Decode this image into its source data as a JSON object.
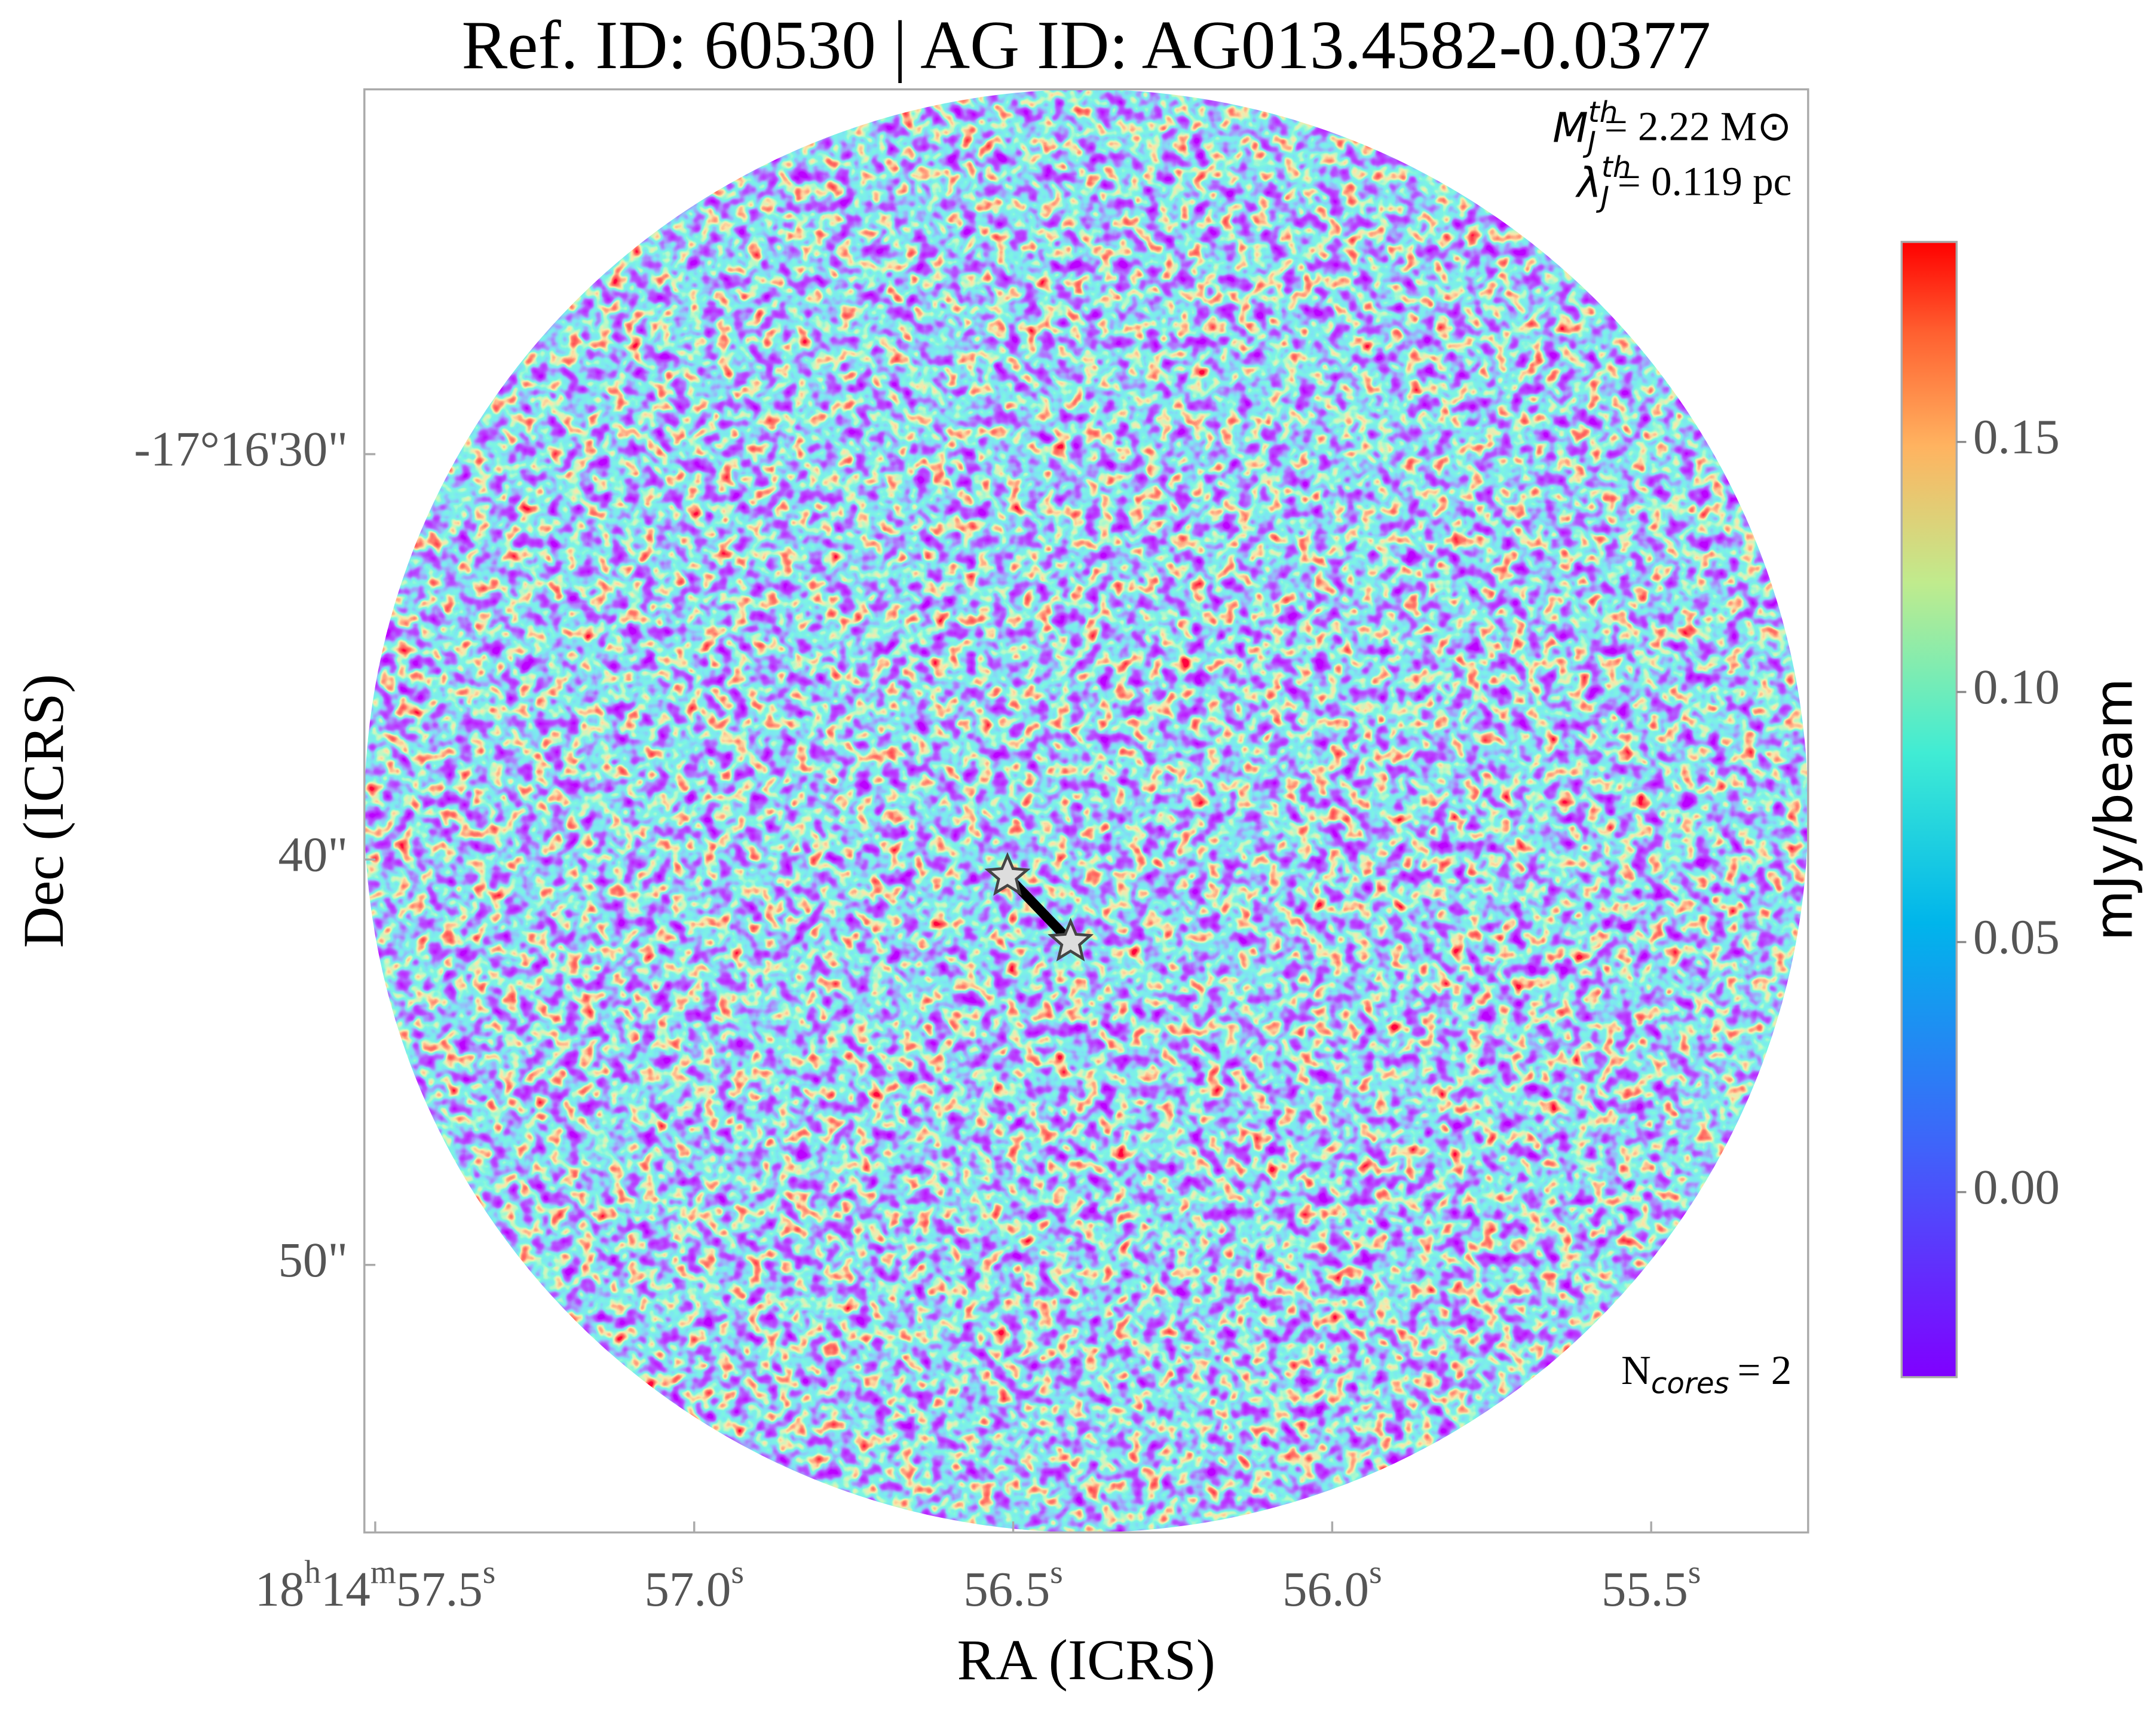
{
  "chart_data": {
    "type": "image",
    "title": "Ref. ID: 60530 | AG ID: AG013.4582-0.0377",
    "x_label": "RA (ICRS)",
    "y_label": "Dec (ICRS)",
    "xlim": [
      57.517,
      55.254
    ],
    "xticks": [
      {
        "value": 57.5,
        "label": "18h14m57.5s"
      },
      {
        "value": 57.0,
        "label": "57.0s"
      },
      {
        "value": 56.5,
        "label": "56.5s"
      },
      {
        "value": 56.0,
        "label": "56.0s"
      },
      {
        "value": 55.5,
        "label": "55.5s"
      }
    ],
    "ylim": [
      56.6,
      21.0
    ],
    "yticks": [
      {
        "value": 30,
        "label": "-17°16'30\""
      },
      {
        "value": 40,
        "label": "40\""
      },
      {
        "value": 50,
        "label": "50\""
      }
    ],
    "cores": {
      "x": [
        56.509,
        56.41
      ],
      "y": [
        40.41,
        42.03
      ]
    },
    "annotations": [
      {
        "text": "M",
        "sub": "J",
        "sup": "th",
        "rest": "= 2.22 M⊙"
      },
      {
        "text": "λ",
        "sub": "J",
        "sup": "th",
        "rest": "= 0.119 pc"
      },
      {
        "text": "N",
        "sub": "cores",
        "rest": "= 2"
      }
    ],
    "colorbar": {
      "label": "mJy/beam",
      "lim": [
        -0.037,
        0.19
      ],
      "ticks": [
        {
          "value": 0,
          "label": "0.00"
        },
        {
          "value": 0.05,
          "label": "0.05"
        },
        {
          "value": 0.1,
          "label": "0.10"
        },
        {
          "value": 0.15,
          "label": "0.15"
        }
      ]
    }
  }
}
